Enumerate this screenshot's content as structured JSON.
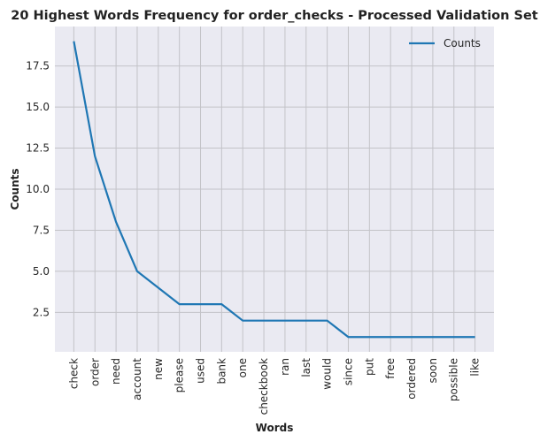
{
  "chart_data": {
    "type": "line",
    "title": "20 Highest Words Frequency for order_checks - Processed Validation Set",
    "xlabel": "Words",
    "ylabel": "Counts",
    "categories": [
      "check",
      "order",
      "need",
      "account",
      "new",
      "please",
      "used",
      "bank",
      "one",
      "checkbook",
      "ran",
      "last",
      "would",
      "since",
      "put",
      "free",
      "ordered",
      "soon",
      "possible",
      "like"
    ],
    "series": [
      {
        "name": "Counts",
        "values": [
          19,
          12,
          8,
          5,
          4,
          3,
          3,
          3,
          2,
          2,
          2,
          2,
          2,
          1,
          1,
          1,
          1,
          1,
          1,
          1
        ]
      }
    ],
    "ylim": [
      0.1,
      19.9
    ],
    "yticks": [
      "2.5",
      "5.0",
      "7.5",
      "10.0",
      "12.5",
      "15.0",
      "17.5"
    ],
    "grid": true,
    "legend_position": "top-right",
    "colors": {
      "line": "#1f77b4",
      "plot_bg": "#eaeaf2",
      "grid": "#c3c3c8"
    }
  }
}
